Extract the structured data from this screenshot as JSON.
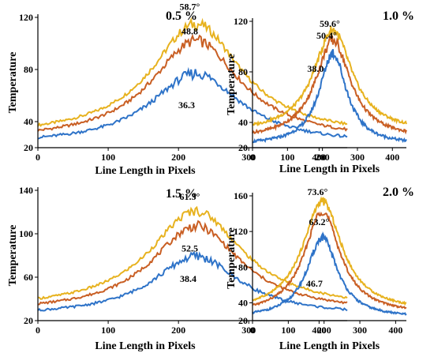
{
  "colors": {
    "series_outer": "#e7b21f",
    "series_middle": "#c95f24",
    "series_inner": "#2e73c8",
    "axis": "#000000",
    "grid": "#dcdcdc"
  },
  "chart_data": [
    {
      "type": "line",
      "panel_label": "0.5 %",
      "xlabel": "Line Length in Pixels",
      "ylabel": "Temperature",
      "xlim": [
        0,
        440
      ],
      "ylim": [
        20,
        120
      ],
      "xticks": [
        0,
        100,
        200,
        300,
        400
      ],
      "yticks": [
        20,
        40,
        80,
        120
      ],
      "grid": false,
      "peak_x": 225,
      "series": [
        {
          "color": "#e7b21f",
          "base": 28,
          "peak": 115,
          "width": 82,
          "label": "58.7°"
        },
        {
          "color": "#c95f24",
          "base": 25,
          "peak": 102,
          "width": 82,
          "label": "48.8"
        },
        {
          "color": "#2e73c8",
          "base": 22,
          "peak": 77,
          "width": 82,
          "label": "36.3"
        }
      ]
    },
    {
      "type": "line",
      "panel_label": "1.0 %",
      "xlabel": "Line Length in Pixels",
      "ylabel": "Temperature",
      "xlim": [
        0,
        440
      ],
      "ylim": [
        20,
        120
      ],
      "xticks": [
        0,
        100,
        200,
        300,
        400
      ],
      "yticks": [
        20,
        40,
        80,
        120
      ],
      "grid": false,
      "peak_x": 230,
      "series": [
        {
          "color": "#e7b21f",
          "base": 32,
          "peak": 113,
          "width": 70,
          "label": "59.6°"
        },
        {
          "color": "#c95f24",
          "base": 27,
          "peak": 105,
          "width": 64,
          "label": "50.4°"
        },
        {
          "color": "#2e73c8",
          "base": 22,
          "peak": 95,
          "width": 50,
          "label": "38.0"
        }
      ]
    },
    {
      "type": "line",
      "panel_label": "1.5 %",
      "xlabel": "Line Length in Pixels",
      "ylabel": "Temperature",
      "xlim": [
        0,
        440
      ],
      "ylim": [
        20,
        140
      ],
      "xticks": [
        0,
        100,
        200,
        300,
        400
      ],
      "yticks": [
        20,
        60,
        100,
        140
      ],
      "grid": false,
      "peak_x": 225,
      "series": [
        {
          "color": "#e7b21f",
          "base": 30,
          "peak": 121,
          "width": 85,
          "label": "61.3°"
        },
        {
          "color": "#c95f24",
          "base": 27,
          "peak": 107,
          "width": 82,
          "label": "52.5"
        },
        {
          "color": "#2e73c8",
          "base": 24,
          "peak": 79,
          "width": 80,
          "label": "38.4"
        }
      ]
    },
    {
      "type": "line",
      "panel_label": "2.0 %",
      "xlabel": "Line Length in Pixels",
      "ylabel": "Temperature",
      "xlim": [
        0,
        430
      ],
      "ylim": [
        20,
        160
      ],
      "xticks": [
        0,
        100,
        200,
        300,
        400
      ],
      "yticks": [
        20,
        40,
        80,
        120,
        160
      ],
      "grid": false,
      "peak_x": 195,
      "series": [
        {
          "color": "#e7b21f",
          "base": 30,
          "peak": 154,
          "width": 70,
          "label": "73.6°"
        },
        {
          "color": "#c95f24",
          "base": 27,
          "peak": 143,
          "width": 64,
          "label": "63.2°"
        },
        {
          "color": "#2e73c8",
          "base": 23,
          "peak": 113,
          "width": 55,
          "label": "46.7"
        }
      ]
    }
  ]
}
